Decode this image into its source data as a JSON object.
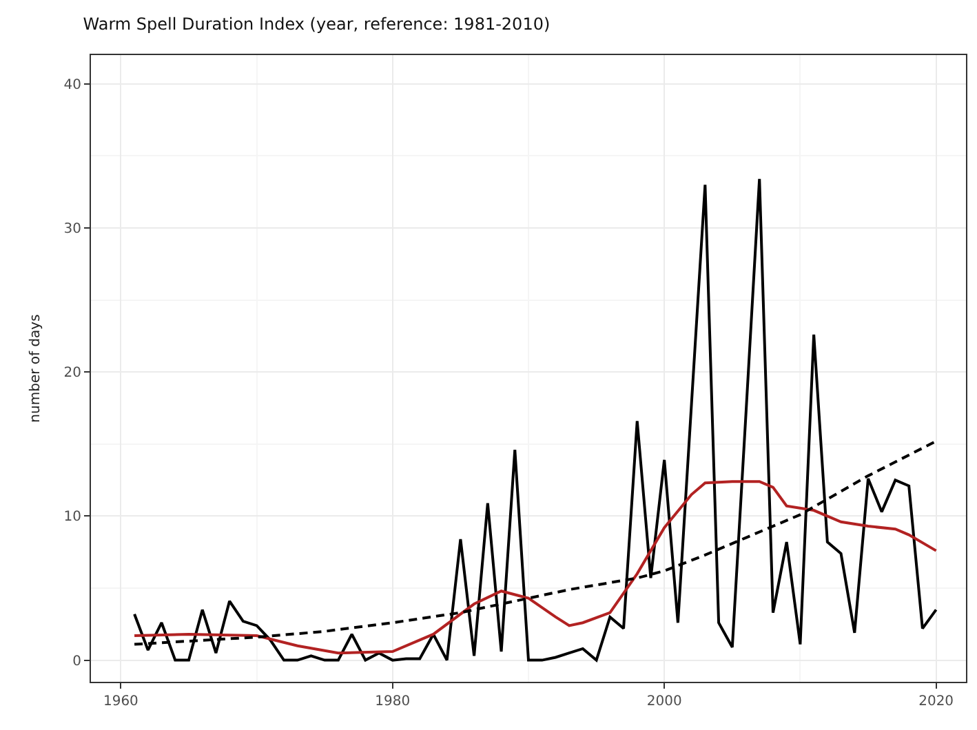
{
  "chart_data": {
    "type": "line",
    "title": "Warm Spell Duration Index (year, reference: 1981-2010)",
    "ylabel": "number of days",
    "xlim": [
      1957.8,
      2022.2
    ],
    "xticks": [
      1960,
      1980,
      2000,
      2020
    ],
    "ylim": [
      -1.5,
      42
    ],
    "yticks": [
      0,
      10,
      20,
      30,
      40
    ],
    "grid": true,
    "marker": "none",
    "series": [
      {
        "color": "#000000",
        "line_style": "solid",
        "x": [
          1961,
          1962,
          1963,
          1964,
          1965,
          1966,
          1967,
          1968,
          1969,
          1970,
          1971,
          1972,
          1973,
          1974,
          1975,
          1976,
          1977,
          1978,
          1979,
          1980,
          1981,
          1982,
          1983,
          1984,
          1985,
          1986,
          1987,
          1988,
          1989,
          1990,
          1991,
          1992,
          1993,
          1994,
          1995,
          1996,
          1997,
          1998,
          1999,
          2000,
          2001,
          2002,
          2003,
          2004,
          2005,
          2006,
          2007,
          2008,
          2009,
          2010,
          2011,
          2012,
          2013,
          2014,
          2015,
          2016,
          2017,
          2018,
          2019,
          2020
        ],
        "values": [
          3.2,
          0.7,
          2.6,
          0,
          0,
          3.5,
          0.5,
          4.1,
          2.7,
          2.4,
          1.4,
          0,
          0,
          0.3,
          0,
          0,
          1.8,
          0,
          0.5,
          0,
          0.1,
          0.1,
          1.8,
          0,
          8.4,
          0.3,
          10.9,
          0.6,
          14.6,
          0,
          0,
          0.2,
          0.5,
          0.8,
          0,
          3,
          2.2,
          16.6,
          5.7,
          13.9,
          2.6,
          17.8,
          33,
          2.6,
          0.9,
          17,
          33.4,
          3.3,
          8.2,
          1.1,
          22.6,
          8.2,
          7.4,
          1.9,
          12.6,
          10.3,
          12.5,
          12.1,
          2.2,
          3.5
        ]
      },
      {
        "color": "#b22222",
        "line_style": "solid",
        "x": [
          1961,
          1965,
          1970,
          1973,
          1976,
          1980,
          1983,
          1986,
          1988,
          1990,
          1992,
          1993,
          1994,
          1996,
          1998,
          2000,
          2002,
          2003,
          2005,
          2007,
          2008,
          2009,
          2011,
          2013,
          2015,
          2017,
          2018,
          2020
        ],
        "values": [
          1.7,
          1.8,
          1.7,
          1.0,
          0.5,
          0.6,
          1.8,
          3.9,
          4.8,
          4.3,
          3.0,
          2.4,
          2.6,
          3.3,
          6.0,
          9.2,
          11.5,
          12.3,
          12.4,
          12.4,
          12.0,
          10.7,
          10.4,
          9.6,
          9.3,
          9.1,
          8.7,
          7.6
        ]
      },
      {
        "color": "#000000",
        "line_style": "dashed",
        "x": [
          1961,
          1970,
          1975,
          1980,
          1985,
          1993,
          1998,
          2000,
          2003,
          2006,
          2010,
          2015,
          2020
        ],
        "values": [
          1.1,
          1.6,
          2.0,
          2.6,
          3.3,
          4.9,
          5.7,
          6.2,
          7.3,
          8.5,
          10.1,
          12.8,
          15.2
        ]
      }
    ]
  }
}
